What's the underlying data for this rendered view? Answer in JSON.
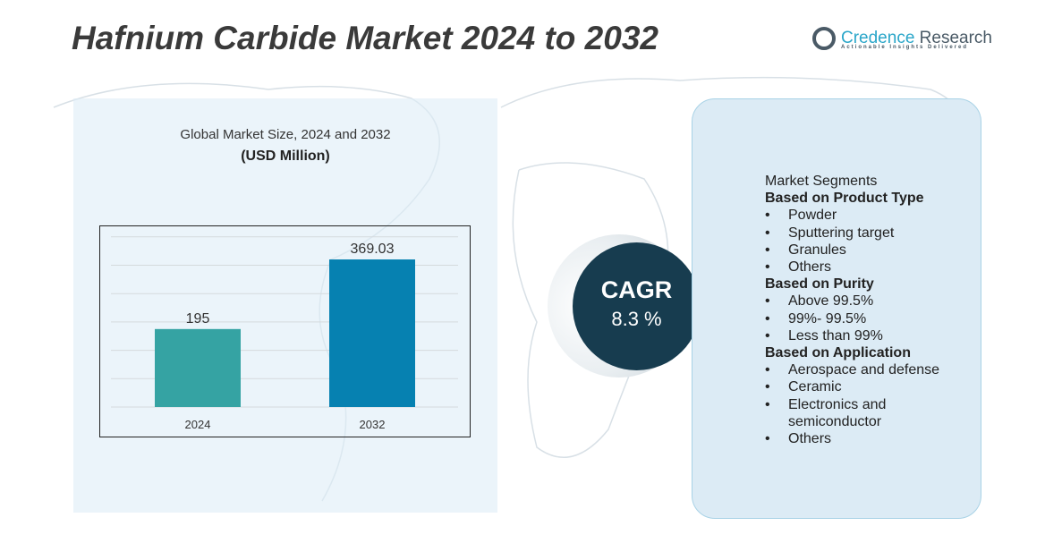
{
  "title": "Hafnium Carbide Market 2024 to 2032",
  "logo": {
    "name_a": "Credence",
    "name_b": " Research",
    "tagline": "Actionable Insights Delivered"
  },
  "chart_heading": "Global Market Size,  2024 and 2032",
  "chart_unit": "(USD Million)",
  "chart_data": {
    "type": "bar",
    "categories": [
      "2024",
      "2032"
    ],
    "values": [
      195,
      369.03
    ],
    "value_labels": [
      "195",
      "369.03"
    ],
    "colors": [
      "#35a3a3",
      "#0681b1"
    ],
    "ylim": [
      0,
      425
    ],
    "grid": true,
    "title": "Global Market Size,  2024 and 2032",
    "ylabel": "(USD Million)"
  },
  "cagr": {
    "label": "CAGR",
    "value": "8.3 %"
  },
  "segments": {
    "heading": "Market Segments",
    "groups": [
      {
        "title": "Based on Product Type",
        "items": [
          "Powder",
          "Sputtering target",
          "Granules",
          "Others"
        ]
      },
      {
        "title": "Based on Purity",
        "items": [
          "Above 99.5%",
          "99%- 99.5%",
          "Less than 99%"
        ]
      },
      {
        "title": "Based on Application",
        "items": [
          "Aerospace and defense",
          "Ceramic",
          "Electronics and semiconductor",
          "Others"
        ]
      }
    ]
  }
}
